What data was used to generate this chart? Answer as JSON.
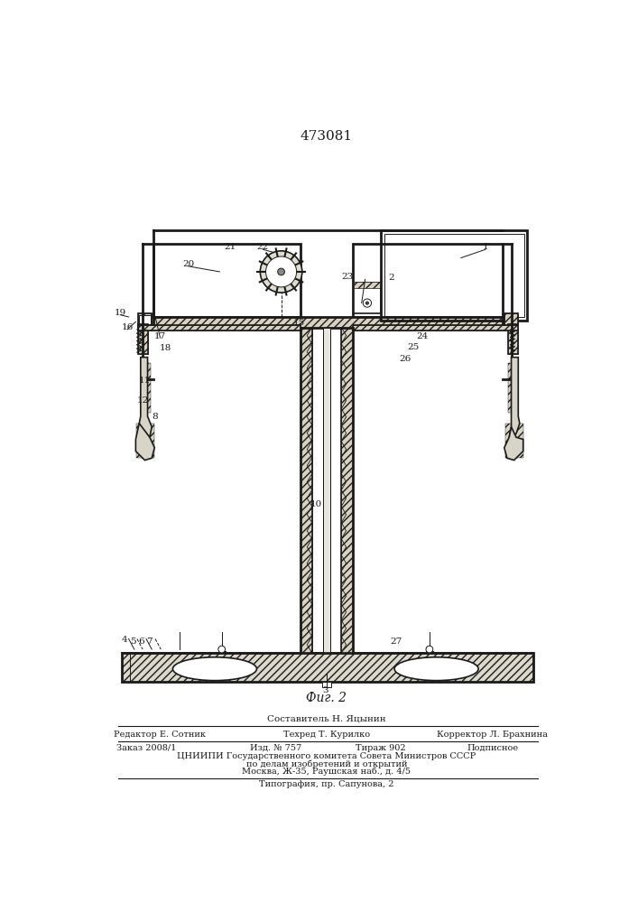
{
  "patent_number": "473081",
  "figure_label": "Фиг. 2",
  "composer": "Составитель Н. Яцынин",
  "editor": "Редактор Е. Сотник",
  "tech": "Техред Т. Курилко",
  "corrector": "Корректор Л. Брахнина",
  "order": "Заказ 2008/1",
  "issue": "Изд. № 757",
  "copies": "Тираж 902",
  "subscription": "Подписное",
  "org_line1": "ЦНИИПИ Государственного комитета Совета Министров СССР",
  "org_line2": "по делам изобретений и открытий",
  "org_line3": "Москва, Ж-35, Раушская наб., д. 4/5",
  "print_house": "Типография, пр. Сапунова, 2",
  "bg_color": "#ffffff",
  "line_color": "#1a1a1a"
}
